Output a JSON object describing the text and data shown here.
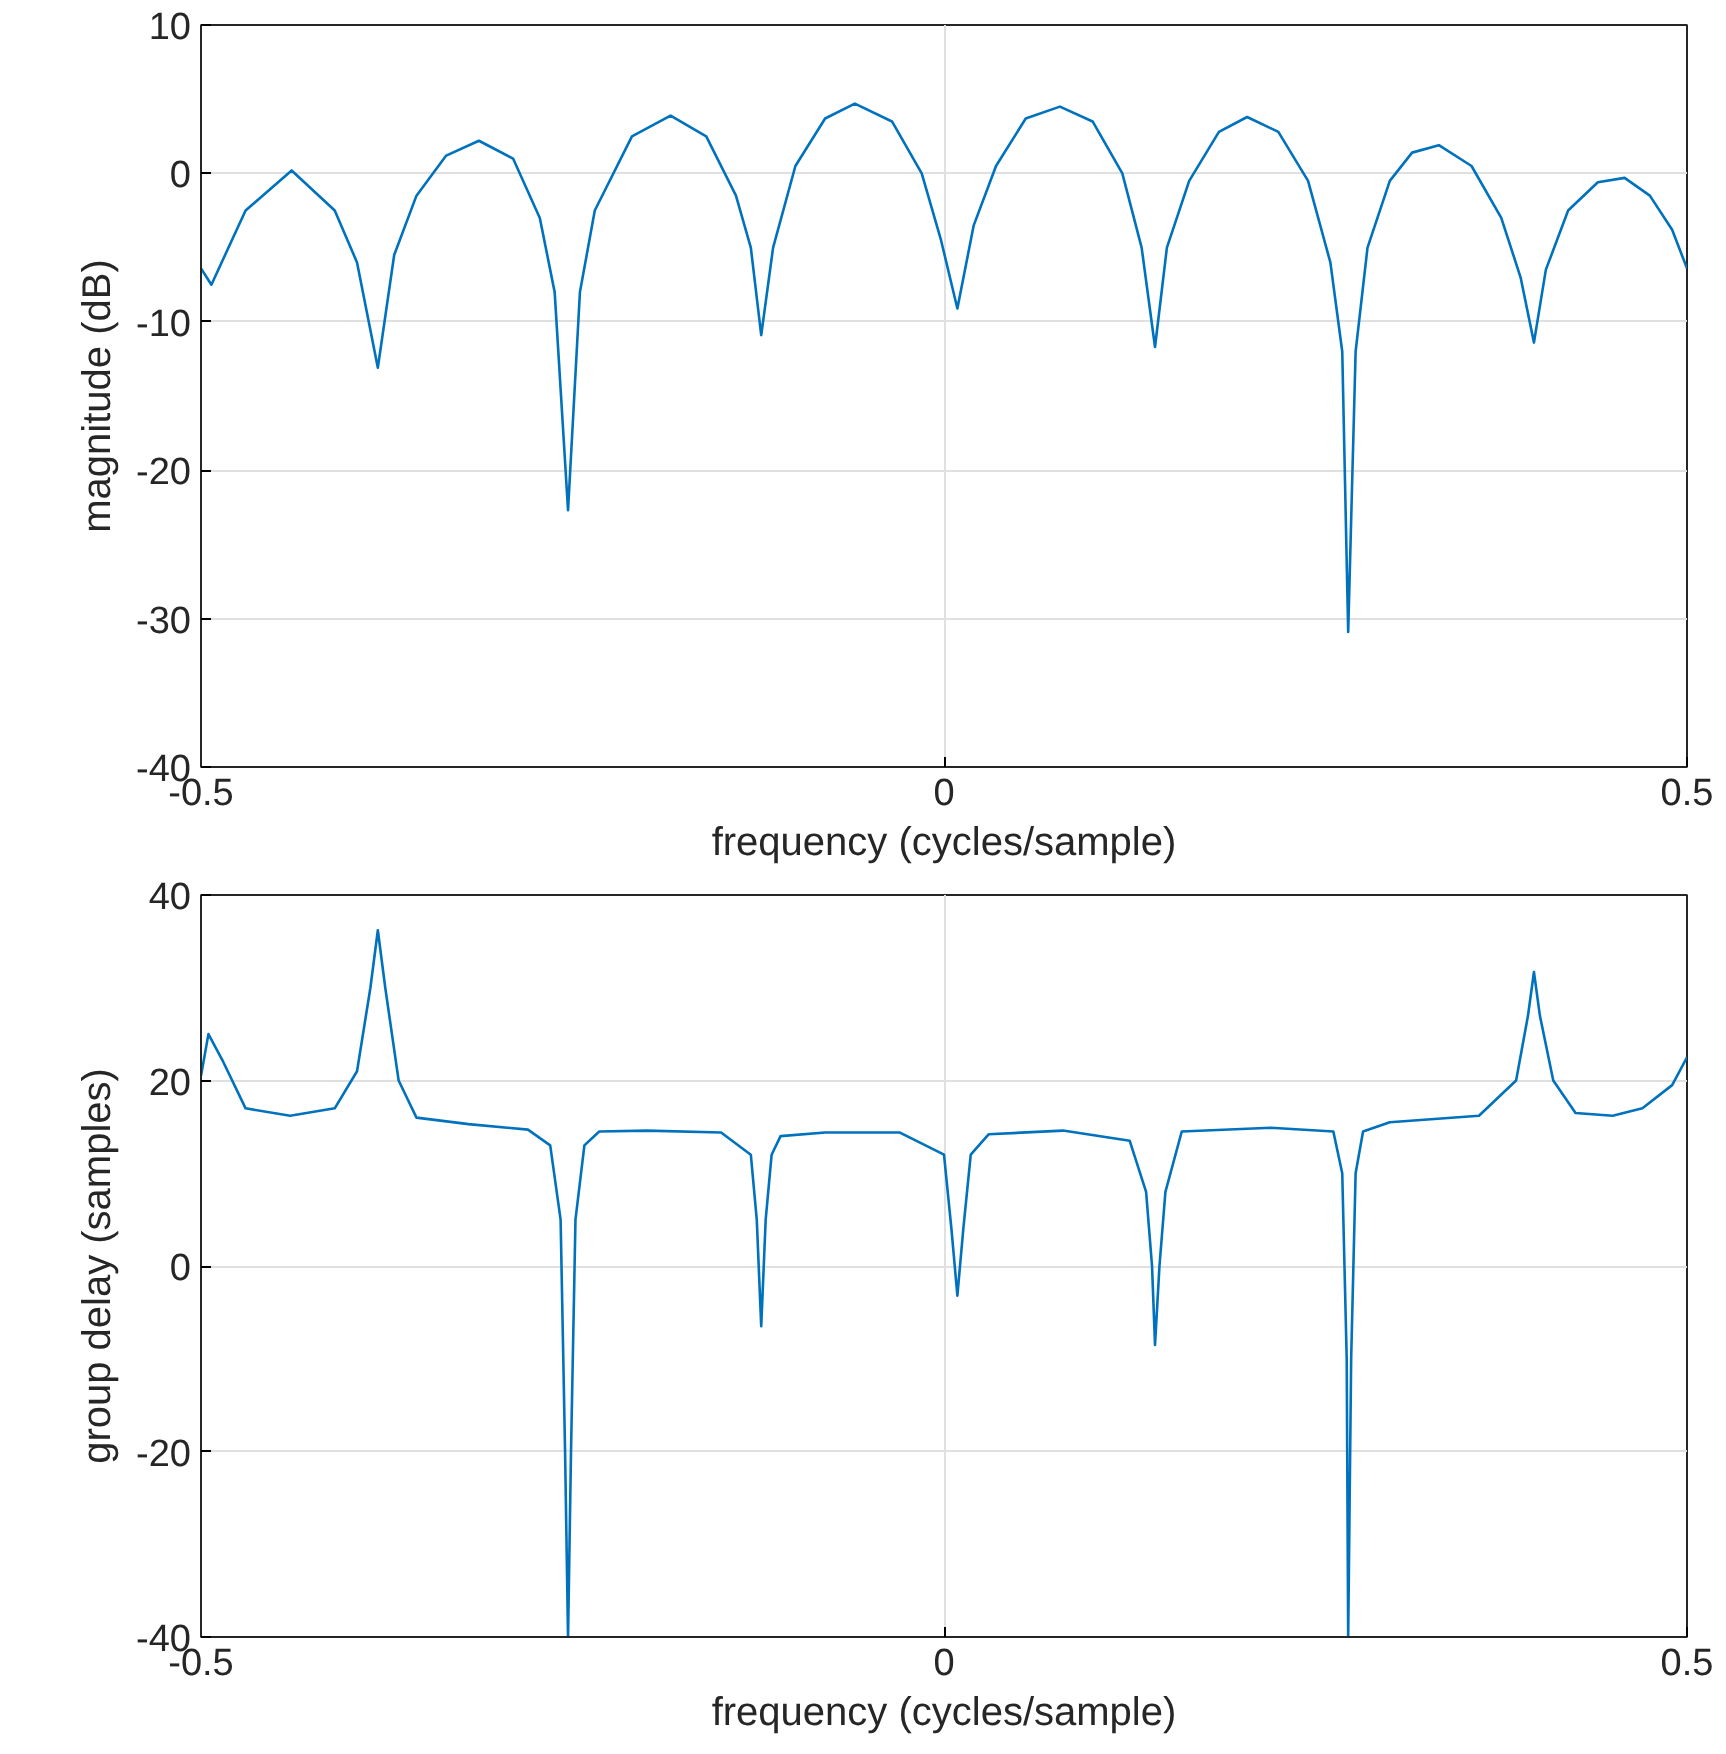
{
  "chart_data": [
    {
      "type": "line",
      "xlabel": "frequency (cycles/sample)",
      "ylabel": "magnitude (dB)",
      "xlim": [
        -0.5,
        0.5
      ],
      "xticks": [
        -0.5,
        0,
        0.5
      ],
      "ylim": [
        -40,
        10
      ],
      "yticks": [
        -40,
        -30,
        -20,
        -10,
        0,
        10
      ],
      "grid": true,
      "marker": "none",
      "line_style": "solid",
      "series": [
        {
          "color": "#0072bd",
          "x": [
            -0.5,
            -0.493,
            -0.47,
            -0.439,
            -0.41,
            -0.395,
            -0.381,
            -0.37,
            -0.355,
            -0.335,
            -0.313,
            -0.29,
            -0.272,
            -0.262,
            -0.253,
            -0.245,
            -0.235,
            -0.21,
            -0.184,
            -0.16,
            -0.14,
            -0.13,
            -0.123,
            -0.115,
            -0.1,
            -0.08,
            -0.06,
            -0.035,
            -0.015,
            -0.002,
            0.009,
            0.02,
            0.035,
            0.055,
            0.078,
            0.1,
            0.12,
            0.133,
            0.142,
            0.15,
            0.165,
            0.185,
            0.204,
            0.225,
            0.245,
            0.26,
            0.268,
            0.272,
            0.277,
            0.285,
            0.3,
            0.315,
            0.333,
            0.355,
            0.375,
            0.388,
            0.397,
            0.405,
            0.42,
            0.44,
            0.458,
            0.475,
            0.49,
            0.5
          ],
          "values": [
            -6.4,
            -7.5,
            -2.5,
            0.2,
            -2.5,
            -6,
            -13.1,
            -5.5,
            -1.5,
            1.2,
            2.2,
            1,
            -3,
            -8,
            -22.7,
            -8,
            -2.5,
            2.5,
            3.9,
            2.5,
            -1.5,
            -5,
            -10.9,
            -5,
            0.5,
            3.7,
            4.7,
            3.5,
            0,
            -4.5,
            -9.1,
            -3.5,
            0.5,
            3.7,
            4.5,
            3.5,
            0,
            -5,
            -11.7,
            -5,
            -0.5,
            2.8,
            3.8,
            2.8,
            -0.5,
            -6,
            -12,
            -30.9,
            -12,
            -5,
            -0.5,
            1.4,
            1.9,
            0.5,
            -3,
            -7,
            -11.4,
            -6.5,
            -2.5,
            -0.6,
            -0.3,
            -1.5,
            -3.8,
            -6.4
          ]
        }
      ]
    },
    {
      "type": "line",
      "xlabel": "frequency (cycles/sample)",
      "ylabel": "group delay (samples)",
      "xlim": [
        -0.5,
        0.5
      ],
      "xticks": [
        -0.5,
        0,
        0.5
      ],
      "ylim": [
        -40,
        40
      ],
      "yticks": [
        -40,
        -20,
        0,
        20,
        40
      ],
      "grid": true,
      "marker": "none",
      "line_style": "solid",
      "series": [
        {
          "color": "#0072bd",
          "x": [
            -0.5,
            -0.495,
            -0.485,
            -0.47,
            -0.44,
            -0.41,
            -0.395,
            -0.386,
            -0.381,
            -0.376,
            -0.367,
            -0.355,
            -0.32,
            -0.28,
            -0.265,
            -0.258,
            -0.255,
            -0.253,
            -0.251,
            -0.248,
            -0.242,
            -0.232,
            -0.2,
            -0.15,
            -0.13,
            -0.126,
            -0.123,
            -0.12,
            -0.116,
            -0.11,
            -0.08,
            -0.03,
            0.0,
            0.005,
            0.009,
            0.013,
            0.018,
            0.03,
            0.08,
            0.125,
            0.136,
            0.14,
            0.142,
            0.145,
            0.149,
            0.16,
            0.22,
            0.262,
            0.268,
            0.271,
            0.272,
            0.274,
            0.277,
            0.282,
            0.3,
            0.36,
            0.385,
            0.393,
            0.397,
            0.401,
            0.41,
            0.425,
            0.45,
            0.47,
            0.49,
            0.5
          ],
          "values": [
            20.5,
            25,
            22,
            17,
            16.2,
            17,
            21,
            30,
            36.2,
            30,
            20,
            16,
            15.3,
            14.7,
            13,
            5,
            -20,
            -40,
            -20,
            5,
            13,
            14.5,
            14.6,
            14.4,
            12,
            5,
            -6.5,
            5,
            12,
            14,
            14.4,
            14.4,
            12,
            4,
            -3.2,
            4,
            12,
            14.2,
            14.6,
            13.5,
            8,
            0,
            -8.5,
            0,
            8,
            14.5,
            14.9,
            14.5,
            10,
            -10,
            -40,
            -10,
            10,
            14.5,
            15.5,
            16.2,
            20,
            27,
            31.7,
            27,
            20,
            16.5,
            16.2,
            17,
            19.5,
            22.5
          ]
        }
      ]
    }
  ]
}
